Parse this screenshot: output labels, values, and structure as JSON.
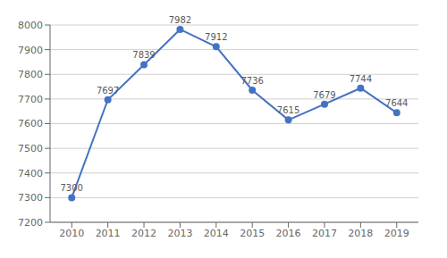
{
  "chart_data": {
    "type": "line",
    "x": [
      2010,
      2011,
      2012,
      2013,
      2014,
      2015,
      2016,
      2017,
      2018,
      2019
    ],
    "values": [
      7300,
      7697,
      7839,
      7982,
      7912,
      7736,
      7615,
      7679,
      7744,
      7644
    ],
    "color": "#4472C4",
    "marker": "circle",
    "xlim": [
      2009.4,
      2019.6
    ],
    "xticks": [
      2010,
      2011,
      2012,
      2013,
      2014,
      2015,
      2016,
      2017,
      2018,
      2019
    ],
    "ylim": [
      7200,
      8000
    ],
    "yticks": [
      7200,
      7300,
      7400,
      7500,
      7600,
      7700,
      7800,
      7900,
      8000
    ],
    "grid": true,
    "data_labels": true
  }
}
